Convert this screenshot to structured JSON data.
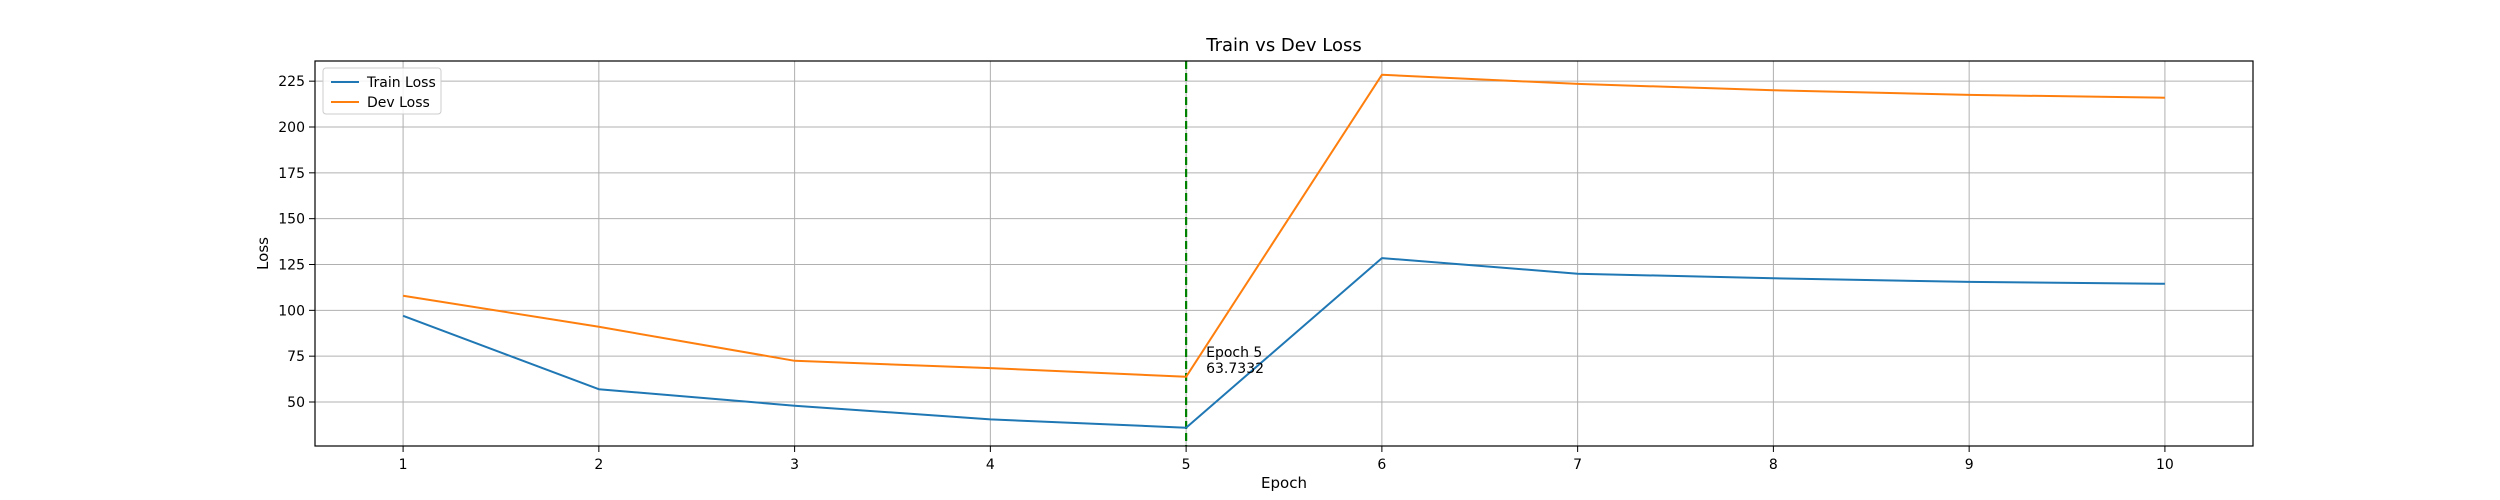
{
  "chart_data": {
    "type": "line",
    "title": "Train vs Dev Loss",
    "xlabel": "Epoch",
    "ylabel": "Loss",
    "x": [
      1,
      2,
      3,
      4,
      5,
      6,
      7,
      8,
      9,
      10
    ],
    "xlim": [
      0.55,
      10.45
    ],
    "ylim": [
      26,
      236
    ],
    "x_ticks": [
      1,
      2,
      3,
      4,
      5,
      6,
      7,
      8,
      9,
      10
    ],
    "y_ticks": [
      50,
      75,
      100,
      125,
      150,
      175,
      200,
      225
    ],
    "grid": true,
    "legend_position": "top-left",
    "series": [
      {
        "name": "Train Loss",
        "color": "#1f77b4",
        "values": [
          97,
          57,
          48,
          40.5,
          36,
          128.5,
          120,
          117.5,
          115.5,
          114.5
        ]
      },
      {
        "name": "Dev Loss",
        "color": "#ff7f0e",
        "values": [
          108,
          91,
          72.5,
          68.5,
          63.7332,
          228.5,
          223.5,
          220,
          217.5,
          216
        ]
      }
    ],
    "annotations": [
      {
        "type": "vline",
        "x": 5,
        "color": "#008000",
        "style": "dashed",
        "label_lines": [
          "Epoch 5",
          "63.7332"
        ]
      }
    ]
  }
}
